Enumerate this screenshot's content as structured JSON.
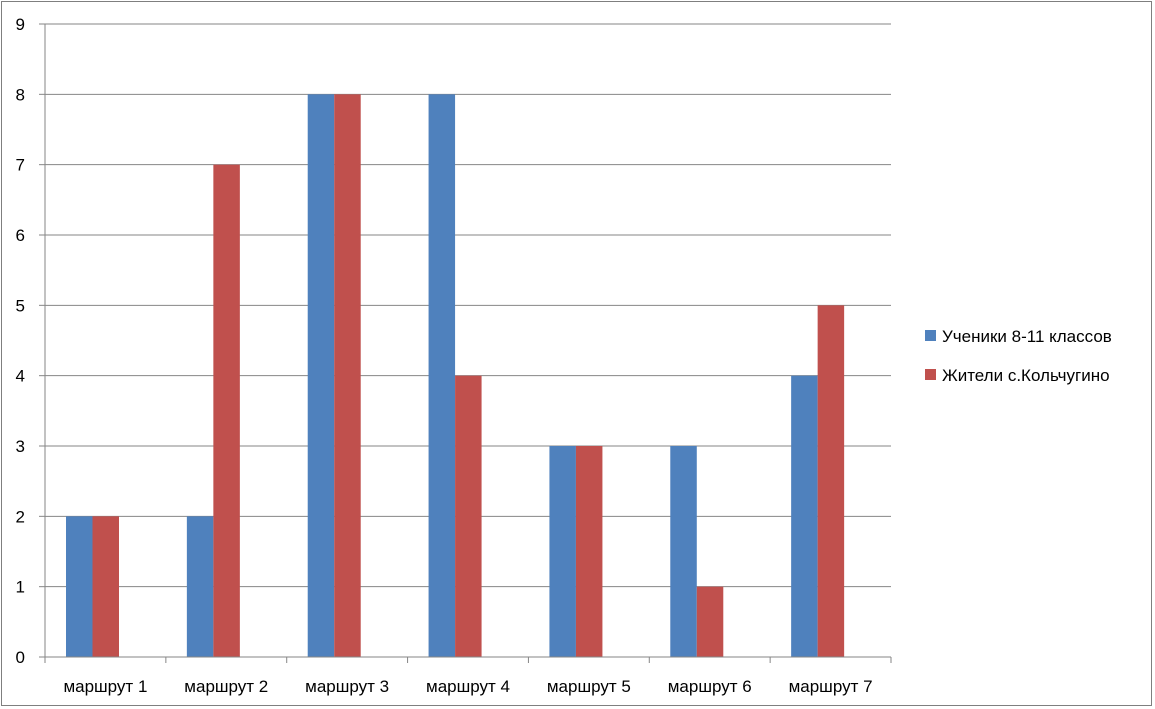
{
  "chart_data": {
    "type": "bar",
    "categories": [
      "маршрут 1",
      "маршрут 2",
      "маршрут 3",
      "маршрут 4",
      "маршрут 5",
      "маршрут 6",
      "маршрут 7"
    ],
    "series": [
      {
        "name": "Ученики 8-11 классов",
        "values": [
          2,
          2,
          8,
          8,
          3,
          3,
          4
        ],
        "color": "#4f81bd"
      },
      {
        "name": "Жители с.Кольчугино",
        "values": [
          2,
          7,
          8,
          4,
          3,
          1,
          5
        ],
        "color": "#c0504d"
      }
    ],
    "ylim": [
      0,
      9
    ],
    "yticks": [
      "0",
      "1",
      "2",
      "3",
      "4",
      "5",
      "6",
      "7",
      "8",
      "9"
    ],
    "grid": true,
    "legend_position": "right"
  }
}
